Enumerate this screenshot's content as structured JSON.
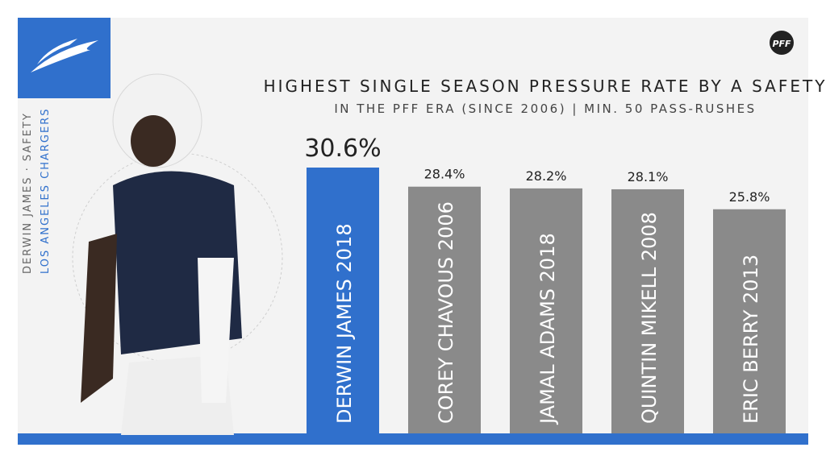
{
  "chart_data": {
    "type": "bar",
    "title": "HIGHEST SINGLE SEASON PRESSURE RATE BY A SAFETY",
    "subtitle": "IN THE PFF ERA (SINCE 2006) | MIN. 50 PASS-RUSHES",
    "player_line": "DERWIN JAMES · SAFETY",
    "team_line": "LOS ANGELES CHARGERS",
    "logo": "PFF",
    "categories": [
      "DERWIN JAMES 2018",
      "COREY CHAVOUS 2006",
      "JAMAL ADAMS 2018",
      "QUINTIN MIKELL 2008",
      "ERIC BERRY 2013"
    ],
    "values": [
      30.6,
      28.4,
      28.2,
      28.1,
      25.8
    ],
    "value_labels": [
      "30.6%",
      "28.4%",
      "28.2%",
      "28.1%",
      "25.8%"
    ],
    "colors": [
      "#3070cc",
      "#8a8a8a",
      "#8a8a8a",
      "#8a8a8a",
      "#8a8a8a"
    ]
  }
}
